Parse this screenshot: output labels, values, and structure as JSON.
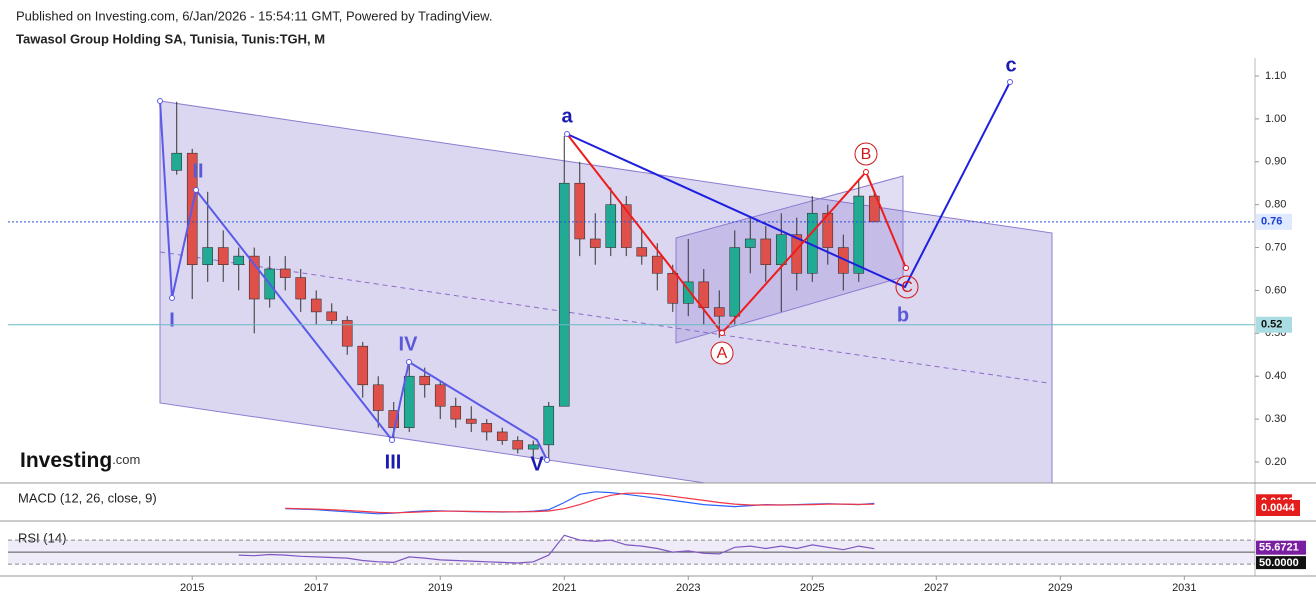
{
  "header": {
    "published": "Published on Investing.com, 6/Jan/2026 - 15:54:11 GMT, Powered by TradingView.",
    "symbol": "Tawasol Group Holding SA, Tunisia, Tunis:TGH, M"
  },
  "watermark": {
    "brand": "Investing",
    "suffix": ".com"
  },
  "chart_data": {
    "type": "candlestick",
    "x": [
      2014.75,
      2015,
      2015.25,
      2015.5,
      2015.75,
      2016,
      2016.25,
      2016.5,
      2016.75,
      2017,
      2017.25,
      2017.5,
      2017.75,
      2018,
      2018.25,
      2018.5,
      2018.75,
      2019,
      2019.25,
      2019.5,
      2019.75,
      2020,
      2020.25,
      2020.5,
      2020.75,
      2021,
      2021.25,
      2021.5,
      2021.75,
      2022,
      2022.25,
      2022.5,
      2022.75,
      2023,
      2023.25,
      2023.5,
      2023.75,
      2024,
      2024.25,
      2024.5,
      2024.75,
      2025,
      2025.25,
      2025.5,
      2025.75,
      2026
    ],
    "open": [
      0.88,
      0.92,
      0.66,
      0.7,
      0.66,
      0.68,
      0.58,
      0.65,
      0.63,
      0.58,
      0.55,
      0.53,
      0.47,
      0.38,
      0.32,
      0.28,
      0.4,
      0.38,
      0.33,
      0.3,
      0.29,
      0.27,
      0.25,
      0.23,
      0.24,
      0.33,
      0.85,
      0.72,
      0.7,
      0.8,
      0.7,
      0.68,
      0.64,
      0.57,
      0.62,
      0.56,
      0.54,
      0.7,
      0.72,
      0.66,
      0.73,
      0.64,
      0.78,
      0.7,
      0.64,
      0.82
    ],
    "high": [
      1.04,
      0.93,
      0.83,
      0.74,
      0.7,
      0.7,
      0.68,
      0.68,
      0.65,
      0.6,
      0.57,
      0.54,
      0.48,
      0.4,
      0.34,
      0.43,
      0.42,
      0.39,
      0.35,
      0.33,
      0.3,
      0.28,
      0.26,
      0.25,
      0.34,
      0.96,
      0.9,
      0.78,
      0.84,
      0.82,
      0.74,
      0.71,
      0.66,
      0.72,
      0.65,
      0.6,
      0.74,
      0.77,
      0.75,
      0.78,
      0.77,
      0.82,
      0.8,
      0.73,
      0.86,
      0.83
    ],
    "low": [
      0.87,
      0.58,
      0.62,
      0.62,
      0.6,
      0.5,
      0.56,
      0.6,
      0.55,
      0.52,
      0.52,
      0.45,
      0.35,
      0.28,
      0.25,
      0.27,
      0.35,
      0.3,
      0.28,
      0.27,
      0.25,
      0.24,
      0.22,
      0.21,
      0.2,
      0.33,
      0.68,
      0.66,
      0.68,
      0.68,
      0.66,
      0.6,
      0.55,
      0.54,
      0.52,
      0.49,
      0.52,
      0.64,
      0.62,
      0.55,
      0.6,
      0.62,
      0.66,
      0.6,
      0.62,
      0.76
    ],
    "close": [
      0.92,
      0.66,
      0.7,
      0.66,
      0.68,
      0.58,
      0.65,
      0.63,
      0.58,
      0.55,
      0.53,
      0.47,
      0.38,
      0.32,
      0.28,
      0.4,
      0.38,
      0.33,
      0.3,
      0.29,
      0.27,
      0.25,
      0.23,
      0.24,
      0.33,
      0.85,
      0.72,
      0.7,
      0.8,
      0.7,
      0.68,
      0.64,
      0.57,
      0.62,
      0.56,
      0.54,
      0.7,
      0.72,
      0.66,
      0.73,
      0.64,
      0.78,
      0.7,
      0.64,
      0.82,
      0.76
    ],
    "up_color": "#22ab94",
    "down_color": "#e0504a",
    "xlim": [
      2011.9,
      2032.14
    ],
    "xticks": [
      2015,
      2017,
      2019,
      2021,
      2023,
      2025,
      2027,
      2029,
      2031
    ],
    "ylim": [
      0.151,
      1.142
    ],
    "yticks": [
      {
        "value": 0.2,
        "label": "0.20"
      },
      {
        "value": 0.3,
        "label": "0.30"
      },
      {
        "value": 0.4,
        "label": "0.40"
      },
      {
        "value": 0.5,
        "label": "0.50"
      },
      {
        "value": 0.6,
        "label": "0.60"
      },
      {
        "value": 0.7,
        "label": "0.70"
      },
      {
        "value": 0.8,
        "label": "0.80"
      },
      {
        "value": 0.9,
        "label": "0.90"
      },
      {
        "value": 1.0,
        "label": "1.00"
      },
      {
        "value": 1.1,
        "label": "1.10"
      }
    ],
    "last_price": 0.76,
    "level": 0.52,
    "waves": {
      "impulse": [
        "I",
        "II",
        "III",
        "IV",
        "V"
      ],
      "abc": [
        "a",
        "b",
        "c"
      ],
      "correction": [
        "A",
        "B",
        "C"
      ]
    },
    "macd": {
      "title": "MACD (12, 26, close, 9)",
      "ylim": [
        -0.06,
        0.1
      ],
      "series": [
        {
          "name": "MACD",
          "color": "#2962ff",
          "values": [
            null,
            null,
            null,
            null,
            null,
            null,
            null,
            -0.01,
            -0.012,
            -0.015,
            -0.02,
            -0.025,
            -0.03,
            -0.035,
            -0.032,
            -0.025,
            -0.02,
            -0.02,
            -0.022,
            -0.024,
            -0.025,
            -0.026,
            -0.025,
            -0.022,
            -0.015,
            0.02,
            0.06,
            0.072,
            0.068,
            0.06,
            0.05,
            0.04,
            0.03,
            0.02,
            0.01,
            0.005,
            0.0,
            0.005,
            0.01,
            0.008,
            0.01,
            0.012,
            0.014,
            0.012,
            0.01,
            0.0163
          ]
        },
        {
          "name": "Signal",
          "color": "#f23645",
          "values": [
            null,
            null,
            null,
            null,
            null,
            null,
            null,
            -0.008,
            -0.01,
            -0.012,
            -0.015,
            -0.019,
            -0.023,
            -0.028,
            -0.03,
            -0.028,
            -0.025,
            -0.022,
            -0.022,
            -0.023,
            -0.024,
            -0.025,
            -0.025,
            -0.024,
            -0.021,
            -0.01,
            0.01,
            0.035,
            0.055,
            0.065,
            0.065,
            0.06,
            0.05,
            0.04,
            0.03,
            0.02,
            0.012,
            0.008,
            0.008,
            0.008,
            0.009,
            0.01,
            0.012,
            0.012,
            0.011,
            0.0119
          ]
        }
      ],
      "histogram_last": 0.0044
    },
    "rsi": {
      "title": "RSI (14)",
      "ylim": [
        12,
        100
      ],
      "bands": [
        30,
        70
      ],
      "mid": {
        "value": 50,
        "label": "50.0000"
      },
      "color": "#7e57c2",
      "values": [
        null,
        null,
        null,
        null,
        45,
        44,
        46,
        45,
        43,
        42,
        41,
        40,
        36,
        34,
        33,
        42,
        40,
        37,
        36,
        35,
        34,
        33,
        32,
        34,
        45,
        78,
        70,
        68,
        70,
        62,
        60,
        56,
        50,
        52,
        48,
        47,
        58,
        60,
        56,
        60,
        56,
        62,
        58,
        54,
        60,
        55.6721
      ]
    }
  }
}
